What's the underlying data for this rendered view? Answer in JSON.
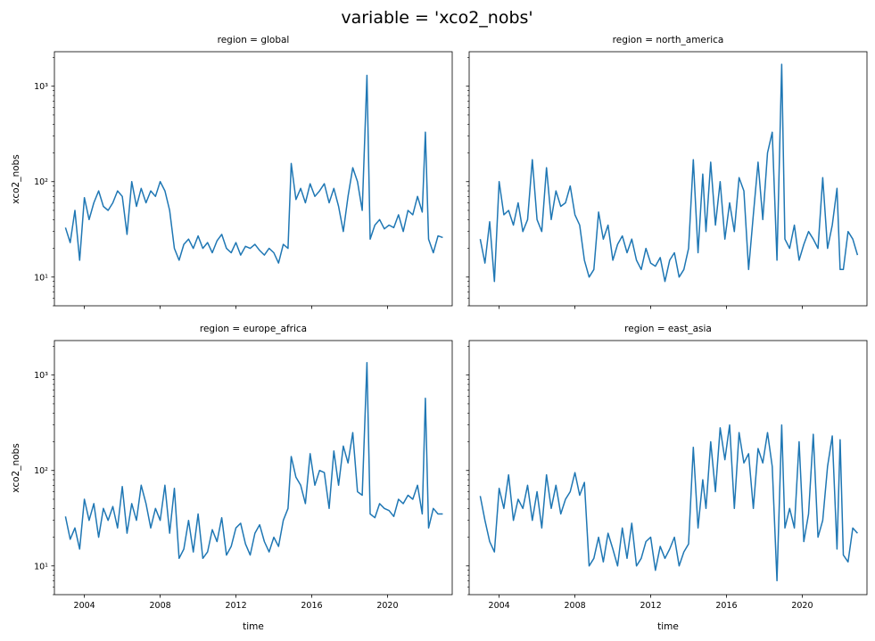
{
  "figure": {
    "title": "variable = 'xco2_nobs'"
  },
  "style": {
    "line_color": "#1f77b4",
    "axis_color": "#000000",
    "background": "#ffffff"
  },
  "chart_data": [
    {
      "type": "line",
      "title": "region = global",
      "xlabel": "",
      "ylabel": "xco2_nobs",
      "xaxis": {
        "kind": "date",
        "range": [
          "2002-06-01",
          "2023-06-01"
        ],
        "ticks": [
          "2004",
          "2008",
          "2012",
          "2016",
          "2020"
        ],
        "tick_labels_shown": false
      },
      "yaxis": {
        "scale": "log",
        "ylim": [
          5,
          2300
        ],
        "ticks": [
          10,
          100,
          1000
        ],
        "tick_labels": [
          "10¹",
          "10²",
          "10³"
        ],
        "tick_labels_shown": true
      },
      "series": [
        {
          "x": [
            "2003-01",
            "2003-04",
            "2003-07",
            "2003-10",
            "2004-01",
            "2004-04",
            "2004-07",
            "2004-10",
            "2005-01",
            "2005-04",
            "2005-07",
            "2005-10",
            "2006-01",
            "2006-04",
            "2006-07",
            "2006-10",
            "2007-01",
            "2007-04",
            "2007-07",
            "2007-10",
            "2008-01",
            "2008-04",
            "2008-07",
            "2008-10",
            "2009-01",
            "2009-04",
            "2009-07",
            "2009-10",
            "2010-01",
            "2010-04",
            "2010-07",
            "2010-10",
            "2011-01",
            "2011-04",
            "2011-07",
            "2011-10",
            "2012-01",
            "2012-04",
            "2012-07",
            "2012-10",
            "2013-01",
            "2013-04",
            "2013-07",
            "2013-10",
            "2014-01",
            "2014-04",
            "2014-07",
            "2014-10",
            "2014-12",
            "2015-03",
            "2015-06",
            "2015-09",
            "2015-12",
            "2016-03",
            "2016-06",
            "2016-09",
            "2016-12",
            "2017-03",
            "2017-06",
            "2017-09",
            "2017-12",
            "2018-03",
            "2018-06",
            "2018-09",
            "2018-12",
            "2019-02",
            "2019-05",
            "2019-08",
            "2019-11",
            "2020-02",
            "2020-05",
            "2020-08",
            "2020-11",
            "2021-02",
            "2021-05",
            "2021-08",
            "2021-11",
            "2022-01",
            "2022-03",
            "2022-06",
            "2022-09",
            "2022-12"
          ],
          "y": [
            33,
            23,
            50,
            15,
            68,
            40,
            60,
            80,
            55,
            50,
            60,
            80,
            70,
            28,
            100,
            55,
            85,
            60,
            80,
            70,
            100,
            80,
            50,
            20,
            15,
            22,
            25,
            20,
            27,
            20,
            23,
            18,
            24,
            28,
            20,
            18,
            23,
            17,
            21,
            20,
            22,
            19,
            17,
            20,
            18,
            14,
            22,
            20,
            155,
            65,
            85,
            60,
            95,
            70,
            80,
            95,
            60,
            85,
            55,
            30,
            70,
            140,
            100,
            50,
            1300,
            25,
            35,
            40,
            32,
            35,
            33,
            45,
            30,
            50,
            45,
            70,
            48,
            330,
            25,
            18,
            27,
            26
          ]
        }
      ]
    },
    {
      "type": "line",
      "title": "region = north_america",
      "xlabel": "",
      "ylabel": "",
      "xaxis": {
        "kind": "date",
        "range": [
          "2002-06-01",
          "2023-06-01"
        ],
        "ticks": [
          "2004",
          "2008",
          "2012",
          "2016",
          "2020"
        ],
        "tick_labels_shown": false
      },
      "yaxis": {
        "scale": "log",
        "ylim": [
          5,
          2300
        ],
        "ticks": [
          10,
          100,
          1000
        ],
        "tick_labels": [
          "10¹",
          "10²",
          "10³"
        ],
        "tick_labels_shown": false
      },
      "series": [
        {
          "x": [
            "2003-01",
            "2003-04",
            "2003-07",
            "2003-10",
            "2004-01",
            "2004-04",
            "2004-07",
            "2004-10",
            "2005-01",
            "2005-04",
            "2005-07",
            "2005-10",
            "2006-01",
            "2006-04",
            "2006-07",
            "2006-10",
            "2007-01",
            "2007-04",
            "2007-07",
            "2007-10",
            "2008-01",
            "2008-04",
            "2008-07",
            "2008-10",
            "2009-01",
            "2009-04",
            "2009-07",
            "2009-10",
            "2010-01",
            "2010-04",
            "2010-07",
            "2010-10",
            "2011-01",
            "2011-04",
            "2011-07",
            "2011-10",
            "2012-01",
            "2012-04",
            "2012-07",
            "2012-10",
            "2013-01",
            "2013-04",
            "2013-07",
            "2013-10",
            "2014-01",
            "2014-04",
            "2014-07",
            "2014-10",
            "2014-12",
            "2015-03",
            "2015-06",
            "2015-09",
            "2015-12",
            "2016-03",
            "2016-06",
            "2016-09",
            "2016-12",
            "2017-03",
            "2017-06",
            "2017-09",
            "2017-12",
            "2018-03",
            "2018-06",
            "2018-09",
            "2018-12",
            "2019-02",
            "2019-05",
            "2019-08",
            "2019-11",
            "2020-02",
            "2020-05",
            "2020-08",
            "2020-11",
            "2021-02",
            "2021-05",
            "2021-08",
            "2021-11",
            "2022-01",
            "2022-03",
            "2022-06",
            "2022-09",
            "2022-12"
          ],
          "y": [
            25,
            14,
            38,
            9,
            100,
            45,
            50,
            35,
            60,
            30,
            40,
            170,
            40,
            30,
            140,
            40,
            80,
            55,
            60,
            90,
            45,
            35,
            15,
            10,
            12,
            48,
            25,
            35,
            15,
            22,
            27,
            18,
            25,
            15,
            12,
            20,
            14,
            13,
            16,
            9,
            15,
            18,
            10,
            12,
            20,
            170,
            18,
            120,
            30,
            160,
            35,
            100,
            25,
            60,
            30,
            110,
            80,
            12,
            45,
            160,
            40,
            200,
            330,
            15,
            1700,
            25,
            20,
            35,
            15,
            22,
            30,
            25,
            20,
            110,
            20,
            35,
            85,
            12,
            12,
            30,
            25,
            17
          ]
        }
      ]
    },
    {
      "type": "line",
      "title": "region = europe_africa",
      "xlabel": "time",
      "ylabel": "xco2_nobs",
      "xaxis": {
        "kind": "date",
        "range": [
          "2002-06-01",
          "2023-06-01"
        ],
        "ticks": [
          "2004",
          "2008",
          "2012",
          "2016",
          "2020"
        ],
        "tick_labels_shown": true
      },
      "yaxis": {
        "scale": "log",
        "ylim": [
          5,
          2300
        ],
        "ticks": [
          10,
          100,
          1000
        ],
        "tick_labels": [
          "10¹",
          "10²",
          "10³"
        ],
        "tick_labels_shown": true
      },
      "series": [
        {
          "x": [
            "2003-01",
            "2003-04",
            "2003-07",
            "2003-10",
            "2004-01",
            "2004-04",
            "2004-07",
            "2004-10",
            "2005-01",
            "2005-04",
            "2005-07",
            "2005-10",
            "2006-01",
            "2006-04",
            "2006-07",
            "2006-10",
            "2007-01",
            "2007-04",
            "2007-07",
            "2007-10",
            "2008-01",
            "2008-04",
            "2008-07",
            "2008-10",
            "2009-01",
            "2009-04",
            "2009-07",
            "2009-10",
            "2010-01",
            "2010-04",
            "2010-07",
            "2010-10",
            "2011-01",
            "2011-04",
            "2011-07",
            "2011-10",
            "2012-01",
            "2012-04",
            "2012-07",
            "2012-10",
            "2013-01",
            "2013-04",
            "2013-07",
            "2013-10",
            "2014-01",
            "2014-04",
            "2014-07",
            "2014-10",
            "2014-12",
            "2015-03",
            "2015-06",
            "2015-09",
            "2015-12",
            "2016-03",
            "2016-06",
            "2016-09",
            "2016-12",
            "2017-03",
            "2017-06",
            "2017-09",
            "2017-12",
            "2018-03",
            "2018-06",
            "2018-09",
            "2018-12",
            "2019-02",
            "2019-05",
            "2019-08",
            "2019-11",
            "2020-02",
            "2020-05",
            "2020-08",
            "2020-11",
            "2021-02",
            "2021-05",
            "2021-08",
            "2021-11",
            "2022-01",
            "2022-03",
            "2022-06",
            "2022-09",
            "2022-12"
          ],
          "y": [
            33,
            19,
            25,
            15,
            50,
            30,
            45,
            20,
            40,
            30,
            42,
            25,
            68,
            22,
            45,
            30,
            70,
            45,
            25,
            40,
            30,
            70,
            22,
            65,
            12,
            15,
            30,
            14,
            35,
            12,
            14,
            24,
            18,
            32,
            13,
            16,
            25,
            28,
            17,
            13,
            22,
            27,
            18,
            14,
            20,
            16,
            30,
            40,
            140,
            85,
            70,
            45,
            150,
            70,
            100,
            95,
            40,
            160,
            70,
            180,
            120,
            250,
            60,
            55,
            1350,
            35,
            32,
            45,
            40,
            38,
            33,
            50,
            45,
            55,
            50,
            70,
            35,
            570,
            25,
            40,
            35,
            35
          ]
        }
      ]
    },
    {
      "type": "line",
      "title": "region = east_asia",
      "xlabel": "time",
      "ylabel": "",
      "xaxis": {
        "kind": "date",
        "range": [
          "2002-06-01",
          "2023-06-01"
        ],
        "ticks": [
          "2004",
          "2008",
          "2012",
          "2016",
          "2020"
        ],
        "tick_labels_shown": true
      },
      "yaxis": {
        "scale": "log",
        "ylim": [
          5,
          2300
        ],
        "ticks": [
          10,
          100,
          1000
        ],
        "tick_labels": [
          "10¹",
          "10²",
          "10³"
        ],
        "tick_labels_shown": false
      },
      "series": [
        {
          "x": [
            "2003-01",
            "2003-04",
            "2003-07",
            "2003-10",
            "2004-01",
            "2004-04",
            "2004-07",
            "2004-10",
            "2005-01",
            "2005-04",
            "2005-07",
            "2005-10",
            "2006-01",
            "2006-04",
            "2006-07",
            "2006-10",
            "2007-01",
            "2007-04",
            "2007-07",
            "2007-10",
            "2008-01",
            "2008-04",
            "2008-07",
            "2008-10",
            "2009-01",
            "2009-04",
            "2009-07",
            "2009-10",
            "2010-01",
            "2010-04",
            "2010-07",
            "2010-10",
            "2011-01",
            "2011-04",
            "2011-07",
            "2011-10",
            "2012-01",
            "2012-04",
            "2012-07",
            "2012-10",
            "2013-01",
            "2013-04",
            "2013-07",
            "2013-10",
            "2014-01",
            "2014-04",
            "2014-07",
            "2014-10",
            "2014-12",
            "2015-03",
            "2015-06",
            "2015-09",
            "2015-12",
            "2016-03",
            "2016-06",
            "2016-09",
            "2016-12",
            "2017-03",
            "2017-06",
            "2017-09",
            "2017-12",
            "2018-03",
            "2018-06",
            "2018-09",
            "2018-12",
            "2019-02",
            "2019-05",
            "2019-08",
            "2019-11",
            "2020-02",
            "2020-05",
            "2020-08",
            "2020-11",
            "2021-02",
            "2021-05",
            "2021-08",
            "2021-11",
            "2022-01",
            "2022-03",
            "2022-06",
            "2022-09",
            "2022-12"
          ],
          "y": [
            54,
            30,
            18,
            14,
            65,
            40,
            90,
            30,
            50,
            40,
            70,
            30,
            60,
            25,
            90,
            40,
            70,
            35,
            50,
            60,
            95,
            55,
            75,
            10,
            12,
            20,
            11,
            22,
            15,
            10,
            25,
            12,
            28,
            10,
            12,
            18,
            20,
            9,
            16,
            12,
            15,
            20,
            10,
            14,
            17,
            175,
            25,
            80,
            40,
            200,
            60,
            280,
            130,
            300,
            40,
            250,
            120,
            150,
            40,
            170,
            120,
            250,
            110,
            7,
            300,
            25,
            40,
            25,
            200,
            18,
            35,
            240,
            20,
            30,
            110,
            230,
            15,
            210,
            13,
            11,
            25,
            22
          ]
        }
      ]
    }
  ]
}
